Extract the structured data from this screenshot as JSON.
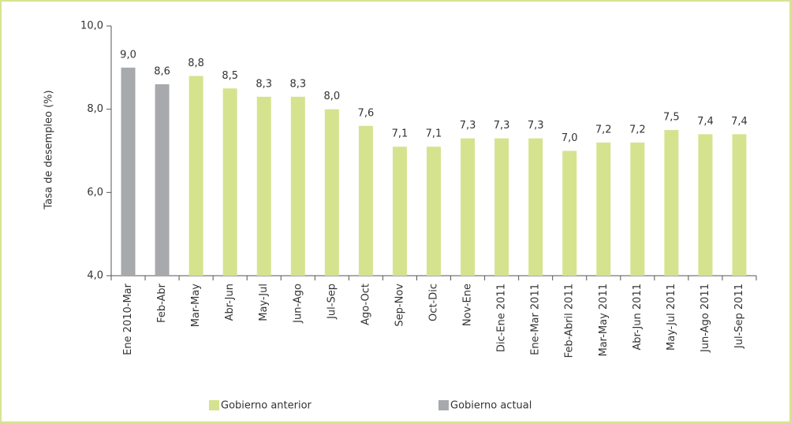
{
  "chart_data": {
    "type": "bar",
    "y_label": "Tasa de desempleo (%)",
    "categories": [
      "Ene 2010-Mar",
      "Feb-Abr",
      "Mar-May",
      "Abr-Jun",
      "May-Jul",
      "Jun-Ago",
      "Jul-Sep",
      "Ago-Oct",
      "Sep-Nov",
      "Oct-Dic",
      "Nov-Ene",
      "Dic-Ene 2011",
      "Ene-Mar 2011",
      "Feb-Abril 2011",
      "Mar-May 2011",
      "Abr-Jun 2011",
      "May-Jul 2011",
      "Jun-Ago 2011",
      "Jul-Sep 2011"
    ],
    "series": [
      {
        "name": "Gobierno anterior",
        "color": "#d5e38f",
        "values": [
          null,
          null,
          8.8,
          8.5,
          8.3,
          8.3,
          8.0,
          7.6,
          7.1,
          7.1,
          7.3,
          7.3,
          7.3,
          7.0,
          7.2,
          7.2,
          7.5,
          7.4,
          7.4
        ],
        "value_labels": [
          null,
          null,
          "8,8",
          "8,5",
          "8,3",
          "8,3",
          "8,0",
          "7,6",
          "7,1",
          "7,1",
          "7,3",
          "7,3",
          "7,3",
          "7,0",
          "7,2",
          "7,2",
          "7,5",
          "7,4",
          "7,4"
        ]
      },
      {
        "name": "Gobierno actual",
        "color": "#a7a9ac",
        "values": [
          9.0,
          8.6,
          null,
          null,
          null,
          null,
          null,
          null,
          null,
          null,
          null,
          null,
          null,
          null,
          null,
          null,
          null,
          null,
          null
        ],
        "value_labels": [
          "9,0",
          "8,6",
          null,
          null,
          null,
          null,
          null,
          null,
          null,
          null,
          null,
          null,
          null,
          null,
          null,
          null,
          null,
          null,
          null
        ]
      }
    ],
    "ylim": [
      4,
      10
    ],
    "yticks": [
      {
        "value": 4,
        "label": "4,0"
      },
      {
        "value": 6,
        "label": "6,0"
      },
      {
        "value": 8,
        "label": "8,0"
      },
      {
        "value": 10,
        "label": "10,0"
      }
    ],
    "legend": "bottom"
  }
}
